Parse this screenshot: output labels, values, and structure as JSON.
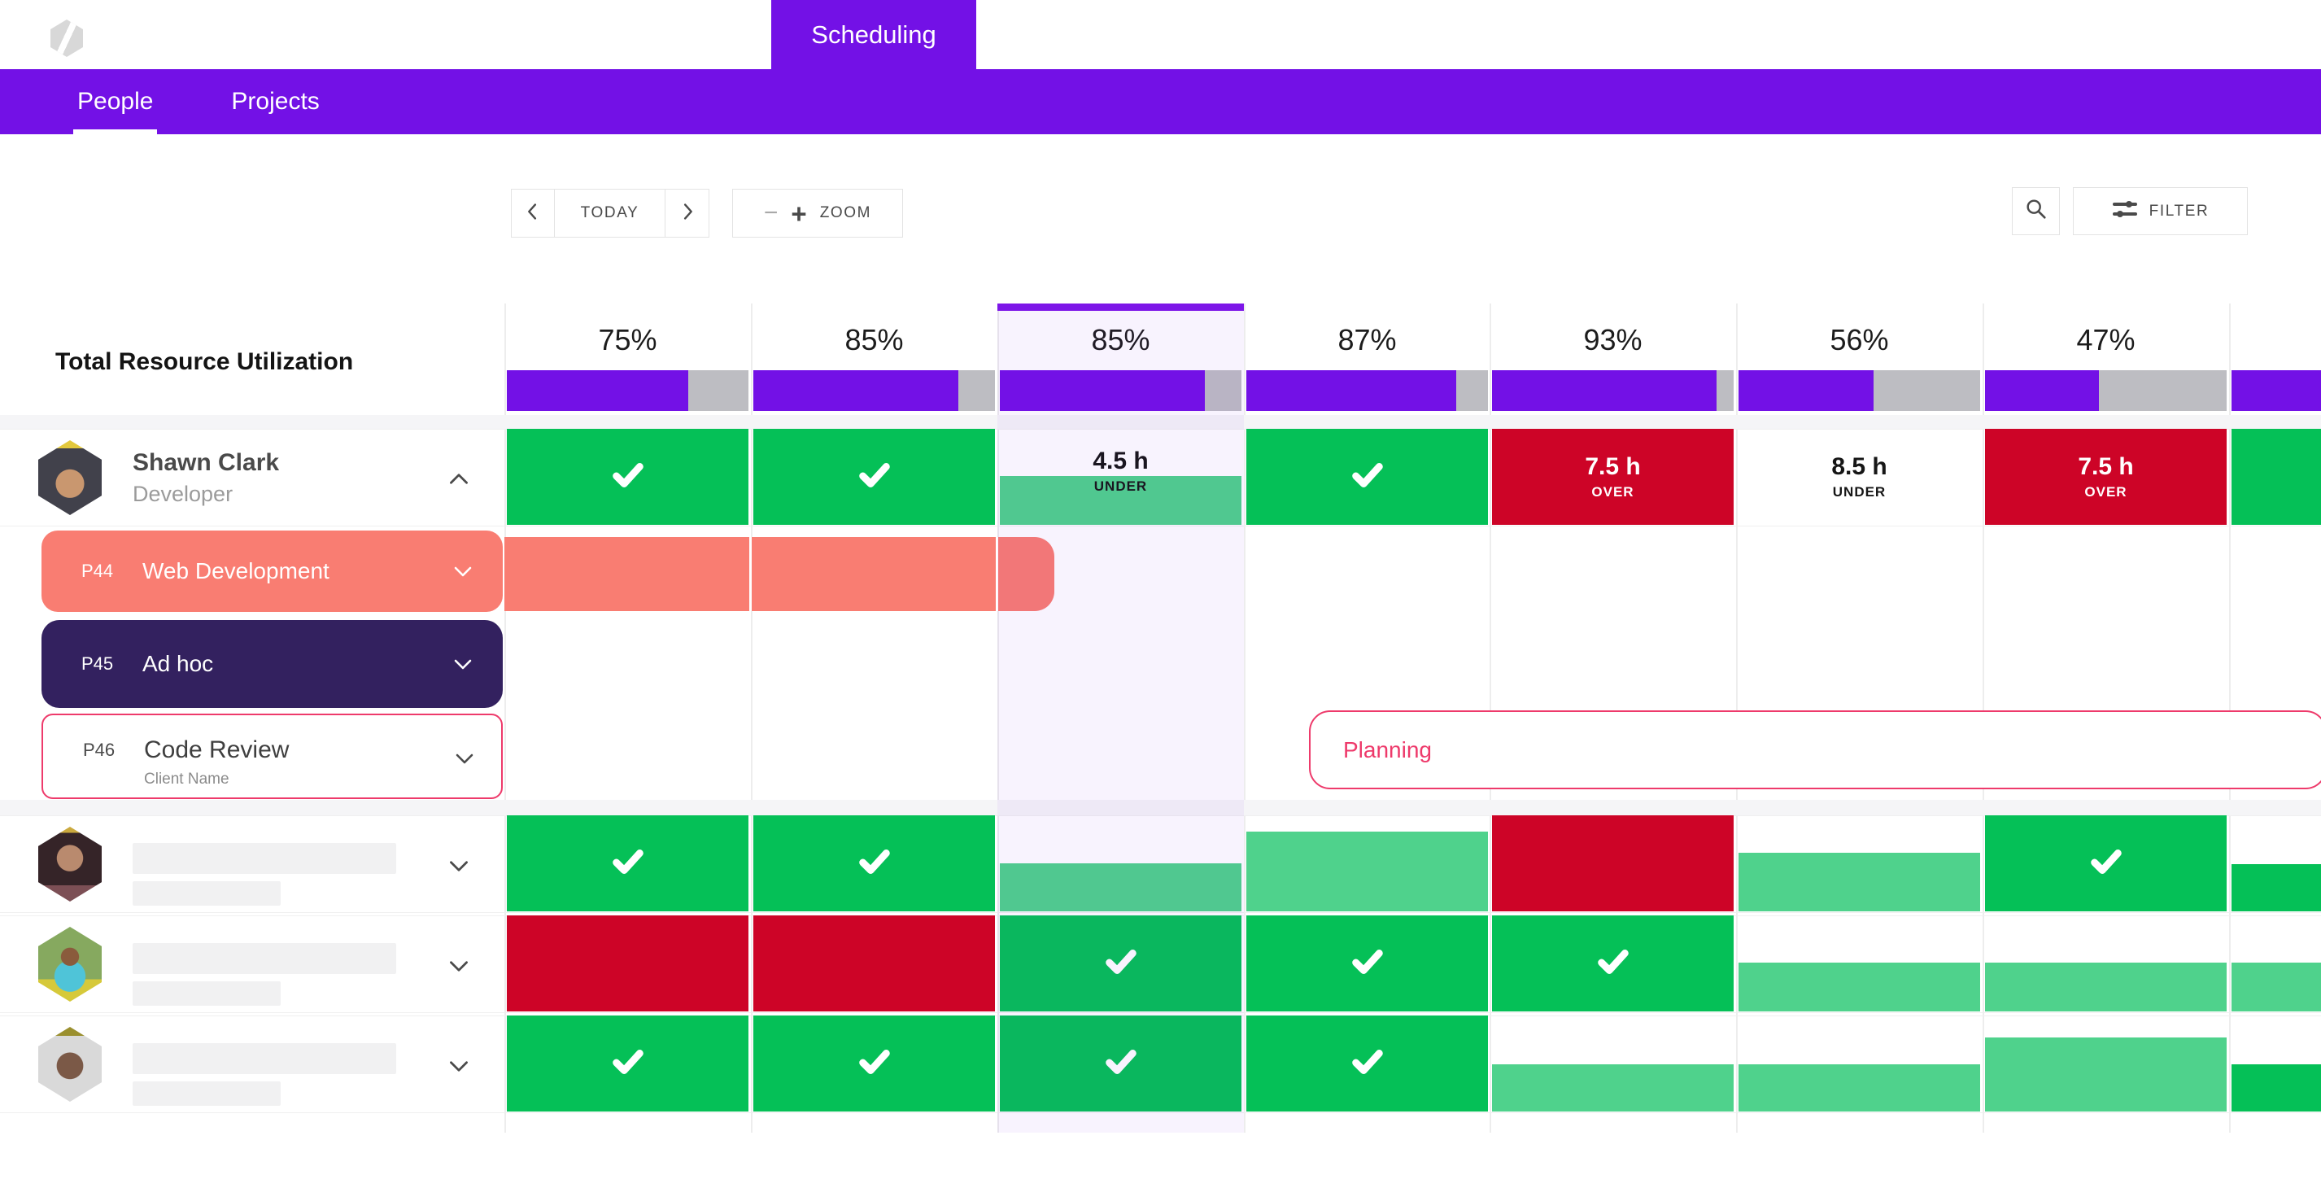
{
  "app": {
    "top_tab": "Scheduling",
    "nav": [
      {
        "label": "People",
        "active": true
      },
      {
        "label": "Projects",
        "active": false
      }
    ]
  },
  "toolbar": {
    "today": "TODAY",
    "zoom": "ZOOM",
    "filter": "FILTER",
    "icons": {
      "prev": "chevron-left",
      "next": "chevron-right",
      "zoom_out": "minus",
      "zoom_in": "plus",
      "search": "magnifier",
      "filter": "sliders"
    }
  },
  "utilization": {
    "title": "Total Resource Utilization",
    "today_index": 2,
    "columns": [
      {
        "label": "75%",
        "pct": 75
      },
      {
        "label": "85%",
        "pct": 85
      },
      {
        "label": "85%",
        "pct": 85
      },
      {
        "label": "87%",
        "pct": 87
      },
      {
        "label": "93%",
        "pct": 93
      },
      {
        "label": "56%",
        "pct": 56
      },
      {
        "label": "47%",
        "pct": 47
      },
      {
        "label": "",
        "pct": 100
      }
    ]
  },
  "people": [
    {
      "name": "Shawn Clark",
      "role": "Developer",
      "expanded": true,
      "skeleton": false,
      "cells": [
        {
          "t": "check"
        },
        {
          "t": "check"
        },
        {
          "t": "under_hours",
          "label": "4.5 h",
          "sub": "UNDER",
          "from": 49
        },
        {
          "t": "check"
        },
        {
          "t": "hours",
          "label": "7.5 h",
          "sub": "OVER",
          "bg": "red"
        },
        {
          "t": "hours",
          "label": "8.5 h",
          "sub": "UNDER",
          "bg": "white"
        },
        {
          "t": "hours",
          "label": "7.5 h",
          "sub": "OVER",
          "bg": "red"
        },
        {
          "t": "solid",
          "color": "green"
        }
      ]
    },
    {
      "name": "",
      "role": "",
      "expanded": false,
      "skeleton": true,
      "cells": [
        {
          "t": "check"
        },
        {
          "t": "check"
        },
        {
          "t": "fill",
          "color": "light",
          "from": 50
        },
        {
          "t": "fill",
          "color": "light",
          "from": 17
        },
        {
          "t": "solid",
          "color": "red"
        },
        {
          "t": "fill",
          "color": "light",
          "from": 39
        },
        {
          "t": "check"
        },
        {
          "t": "fill",
          "color": "green",
          "from": 51
        }
      ]
    },
    {
      "name": "",
      "role": "",
      "expanded": false,
      "skeleton": true,
      "cells": [
        {
          "t": "solid",
          "color": "red"
        },
        {
          "t": "solid",
          "color": "red"
        },
        {
          "t": "check"
        },
        {
          "t": "check"
        },
        {
          "t": "check"
        },
        {
          "t": "fill",
          "color": "light",
          "from": 49
        },
        {
          "t": "fill",
          "color": "light",
          "from": 49
        },
        {
          "t": "fill",
          "color": "light",
          "from": 49
        }
      ]
    },
    {
      "name": "",
      "role": "",
      "expanded": false,
      "skeleton": true,
      "cells": [
        {
          "t": "check"
        },
        {
          "t": "check"
        },
        {
          "t": "check"
        },
        {
          "t": "check"
        },
        {
          "t": "fill",
          "color": "light",
          "from": 51
        },
        {
          "t": "fill",
          "color": "light",
          "from": 51
        },
        {
          "t": "fill",
          "color": "light",
          "from": 23
        },
        {
          "t": "fill",
          "color": "green",
          "from": 51
        }
      ]
    }
  ],
  "projects": [
    {
      "id": "P44",
      "name": "Web Development",
      "client": "",
      "style": "salmon",
      "has_bar": true
    },
    {
      "id": "P45",
      "name": "Ad hoc",
      "client": "",
      "style": "indigo",
      "has_bar": false
    },
    {
      "id": "P46",
      "name": "Code Review",
      "client": "Client Name",
      "style": "outline",
      "has_bar": false
    }
  ],
  "planning": {
    "label": "Planning"
  },
  "colors": {
    "purple": "#7311e6",
    "todayBorder": "#7d16e8",
    "barGray": "#bdbdc2",
    "green": "#05c057",
    "greenLight": "#4fd28c",
    "red": "#cd0427",
    "salmon": "#f97d72",
    "indigo": "#33215f",
    "pink": "#ee3a6b",
    "textDark": "#4a4a4a",
    "textGray": "#9b9b9b",
    "line": "#ededed",
    "band": "#f5f5f7",
    "border": "#e3e3e3",
    "skeleton": "#f1f1f2"
  }
}
